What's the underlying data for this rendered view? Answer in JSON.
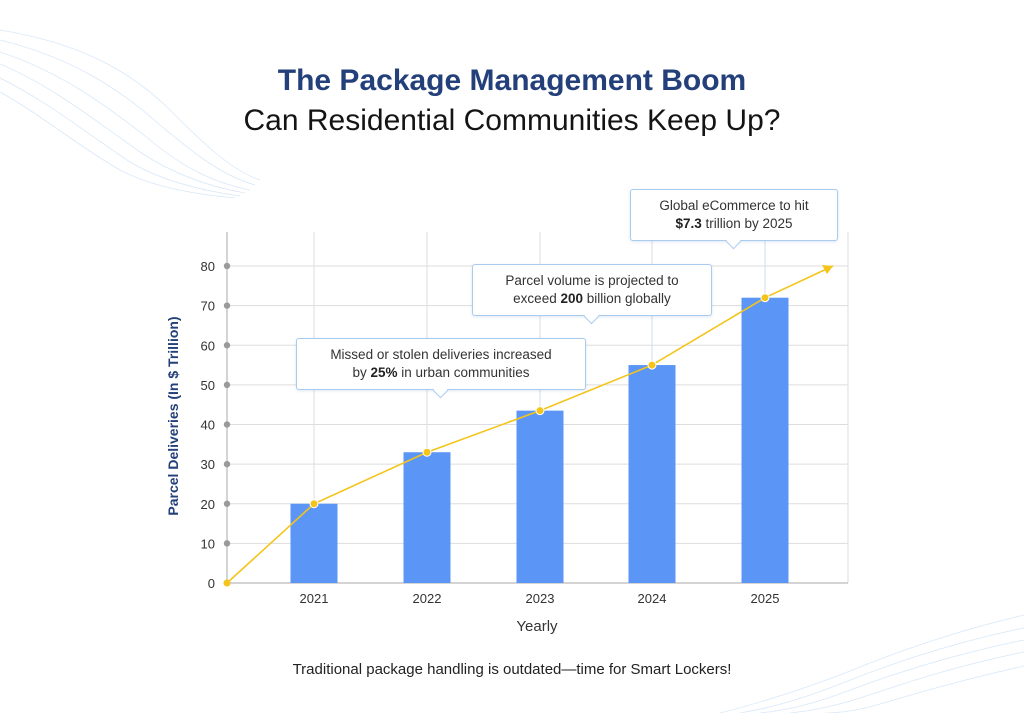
{
  "header": {
    "title": "The Package Management Boom",
    "subtitle": "Can Residential Communities Keep Up?"
  },
  "chart_data": {
    "type": "bar",
    "categories": [
      "2021",
      "2022",
      "2023",
      "2024",
      "2025"
    ],
    "series": [
      {
        "values": [
          20,
          33,
          43.5,
          55,
          72
        ]
      }
    ],
    "trend_line": {
      "x0_value": 0,
      "values": [
        20,
        33,
        43.5,
        55,
        72
      ],
      "end_value": 80
    },
    "xlabel": "Yearly",
    "ylabel": "Parcel Deliveries (In $ Trillion)",
    "ylim": [
      0,
      80
    ],
    "yticks": [
      0,
      10,
      20,
      30,
      40,
      50,
      60,
      70,
      80
    ],
    "grid": true,
    "legend": "none",
    "colors": {
      "bar": "#5b95f6",
      "line": "#f5c41a",
      "title": "#24407a",
      "axis_text": "#333333",
      "grid": "#dddddd"
    },
    "annotations": [
      {
        "category": "2023",
        "parts": [
          [
            "Missed or stolen deliveries increased",
            ""
          ],
          [
            "by ",
            "25%",
            " in urban communities"
          ]
        ]
      },
      {
        "category": "2024",
        "parts": [
          [
            "Parcel volume is projected to",
            ""
          ],
          [
            "exceed ",
            "200",
            " billion globally"
          ]
        ]
      },
      {
        "category": "2025",
        "parts": [
          [
            "Global eCommerce to hit",
            ""
          ],
          [
            "",
            "$7.3",
            " trillion by 2025"
          ]
        ]
      }
    ]
  },
  "footer": {
    "text": "Traditional package handling is outdated—time for Smart Lockers!"
  }
}
